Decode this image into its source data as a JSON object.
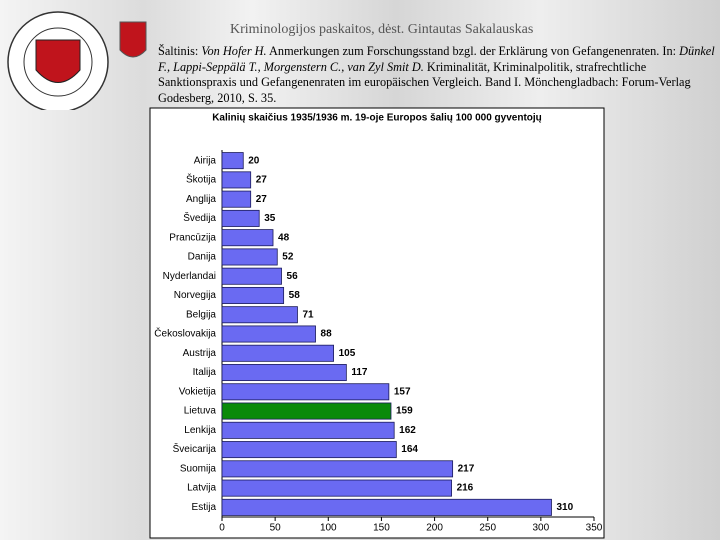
{
  "header": "Kriminologijos paskaitos, dėst. Gintautas Sakalauskas",
  "source": [
    {
      "text": "Šaltinis: ",
      "italic": false
    },
    {
      "text": "Von Hofer H.",
      "italic": true
    },
    {
      "text": " Anmerkungen zum Forschungsstand bzgl. der Erklärung von Gefangenenraten. In: ",
      "italic": false
    },
    {
      "text": "Dünkel F., Lappi-Seppälä T., Morgenstern C., van Zyl Smit D.",
      "italic": true
    },
    {
      "text": " Kriminalität, Kriminalpolitik, strafrechtliche Sanktionspraxis und Gefangenenraten im europäischen Vergleich. Band I. Mönchengladbach: Forum-Verlag Godesberg, 2010, S. 35.",
      "italic": false
    }
  ],
  "chart_data": {
    "type": "hbar",
    "title": "Kalinių skaičius 1935/1936 m. 19-oje Europos šalių 100 000 gyventojų",
    "categories": [
      "Airija",
      "Škotija",
      "Anglija",
      "Švedija",
      "Prancūzija",
      "Danija",
      "Nyderlandai",
      "Norvegija",
      "Belgija",
      "Čekoslovakija",
      "Austrija",
      "Italija",
      "Vokietija",
      "Lietuva",
      "Lenkija",
      "Šveicarija",
      "Suomija",
      "Latvija",
      "Estija"
    ],
    "values": [
      20,
      27,
      27,
      35,
      48,
      52,
      56,
      58,
      71,
      88,
      105,
      117,
      157,
      159,
      162,
      164,
      217,
      216,
      310
    ],
    "colors": [
      "#6a6af2",
      "#6a6af2",
      "#6a6af2",
      "#6a6af2",
      "#6a6af2",
      "#6a6af2",
      "#6a6af2",
      "#6a6af2",
      "#6a6af2",
      "#6a6af2",
      "#6a6af2",
      "#6a6af2",
      "#6a6af2",
      "#0a8a0a",
      "#6a6af2",
      "#6a6af2",
      "#6a6af2",
      "#6a6af2",
      "#6a6af2"
    ],
    "xlim": [
      0,
      350
    ],
    "xticks": [
      0,
      50,
      100,
      150,
      200,
      250,
      300,
      350
    ]
  }
}
